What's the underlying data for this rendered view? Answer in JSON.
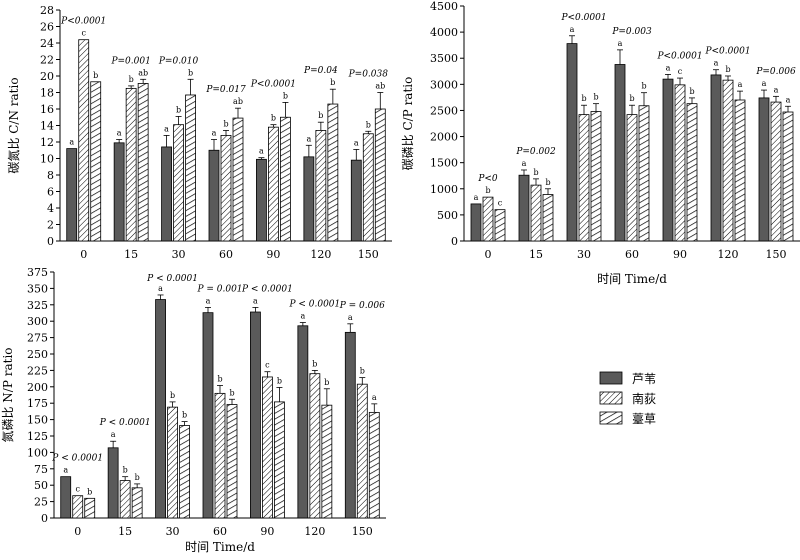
{
  "colors": {
    "series0": "#5a5a5a",
    "series1": "#ffffff",
    "series2": "#ffffff",
    "axis": "#000000"
  },
  "chart_data": [
    {
      "type": "bar",
      "ylabel": "碳氮比 C/N ratio",
      "xlabel": "",
      "categories": [
        "0",
        "15",
        "30",
        "60",
        "90",
        "120",
        "150"
      ],
      "ylim": [
        0,
        28
      ],
      "yticks": [
        0,
        2,
        4,
        6,
        8,
        10,
        12,
        14,
        16,
        18,
        20,
        22,
        24,
        26,
        28
      ],
      "series": [
        {
          "name": "芦苇",
          "values": [
            11.2,
            11.9,
            11.4,
            11.0,
            9.9,
            10.2,
            9.8
          ],
          "errors": [
            0.0,
            0.4,
            1.4,
            1.3,
            0.2,
            1.4,
            1.3
          ],
          "letters": [
            "a",
            "a",
            "a",
            "a",
            "a",
            "a",
            "a"
          ]
        },
        {
          "name": "南荻",
          "values": [
            24.4,
            18.5,
            14.1,
            12.8,
            13.8,
            13.4,
            13.0
          ],
          "errors": [
            0.0,
            0.3,
            1.0,
            0.6,
            0.3,
            1.0,
            0.3
          ],
          "letters": [
            "c",
            "b",
            "b",
            "b",
            "b",
            "b",
            "b"
          ]
        },
        {
          "name": "薹草",
          "values": [
            19.3,
            19.1,
            17.7,
            14.9,
            15.0,
            16.6,
            16.0
          ],
          "errors": [
            0.0,
            0.5,
            1.9,
            1.2,
            1.8,
            1.8,
            2.0
          ],
          "letters": [
            "b",
            "ab",
            "b",
            "ab",
            "b",
            "b",
            "ab"
          ]
        }
      ],
      "pvalues": [
        "P<0.0001",
        "P=0.001",
        "P=0.010",
        "P=0.017",
        "P<0.0001",
        "P=0.04",
        "P=0.038"
      ]
    },
    {
      "type": "bar",
      "ylabel": "碳磷比 C/P ratio",
      "xlabel": "时间 Time/d",
      "categories": [
        "0",
        "15",
        "30",
        "60",
        "90",
        "120",
        "150"
      ],
      "ylim": [
        0,
        4500
      ],
      "yticks": [
        0,
        500,
        1000,
        1500,
        2000,
        2500,
        3000,
        3500,
        4000,
        4500
      ],
      "series": [
        {
          "name": "芦苇",
          "values": [
            710,
            1260,
            3780,
            3380,
            3100,
            3180,
            2740
          ],
          "errors": [
            0,
            100,
            150,
            280,
            90,
            100,
            150
          ],
          "letters": [
            "a",
            "a",
            "a",
            "a",
            "a",
            "a",
            "a"
          ]
        },
        {
          "name": "南荻",
          "values": [
            840,
            1070,
            2420,
            2420,
            2990,
            3080,
            2660
          ],
          "errors": [
            0,
            120,
            180,
            180,
            130,
            80,
            110
          ],
          "letters": [
            "b",
            "b",
            "b",
            "b",
            "c",
            "b",
            "a"
          ]
        },
        {
          "name": "薹草",
          "values": [
            600,
            890,
            2480,
            2590,
            2630,
            2700,
            2470
          ],
          "errors": [
            0,
            110,
            150,
            250,
            110,
            170,
            110
          ],
          "letters": [
            "c",
            "b",
            "b",
            "b",
            "b",
            "a",
            "a"
          ]
        }
      ],
      "pvalues": [
        "P<0",
        "P=0.002",
        "P<0.0001",
        "P=0.003",
        "P<0.0001",
        "P<0.0001",
        "P=0.006"
      ]
    },
    {
      "type": "bar",
      "ylabel": "氮磷比 N/P ratio",
      "xlabel": "时间 Time/d",
      "categories": [
        "0",
        "15",
        "30",
        "60",
        "90",
        "120",
        "150"
      ],
      "ylim": [
        0,
        375
      ],
      "yticks": [
        0,
        25,
        50,
        75,
        100,
        125,
        150,
        175,
        200,
        225,
        250,
        275,
        300,
        325,
        350,
        375
      ],
      "series": [
        {
          "name": "芦苇",
          "values": [
            63,
            107,
            333,
            313,
            314,
            293,
            283
          ],
          "errors": [
            0,
            10,
            7,
            8,
            7,
            5,
            13
          ],
          "letters": [
            "a",
            "a",
            "a",
            "a",
            "a",
            "a",
            "a"
          ]
        },
        {
          "name": "南荻",
          "values": [
            34,
            57,
            169,
            190,
            215,
            220,
            204
          ],
          "errors": [
            0,
            6,
            8,
            12,
            8,
            5,
            10
          ],
          "letters": [
            "c",
            "b",
            "b",
            "b",
            "c",
            "b",
            "b"
          ]
        },
        {
          "name": "薹草",
          "values": [
            30,
            46,
            141,
            173,
            177,
            172,
            161
          ],
          "errors": [
            0,
            6,
            6,
            8,
            22,
            25,
            13
          ],
          "letters": [
            "b",
            "b",
            "b",
            "b",
            "b",
            "b",
            "a"
          ]
        }
      ],
      "pvalues": [
        "P < 0.0001",
        "P < 0.0001",
        "P < 0.0001",
        "P = 0.001",
        "P < 0.0001",
        "P < 0.0001",
        "P = 0.006"
      ]
    }
  ],
  "legend": {
    "items": [
      "芦苇",
      "南荻",
      "薹草"
    ]
  }
}
